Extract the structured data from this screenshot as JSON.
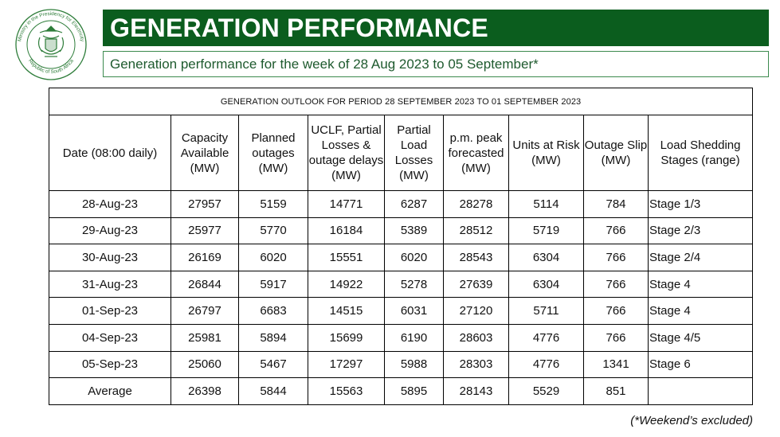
{
  "logo": {
    "ring_text_top": "Ministry in the Presidency for Electricity",
    "ring_text_bottom": "Republic of South Africa",
    "color": "#2e7d3a"
  },
  "header": {
    "title": "GENERATION PERFORMANCE",
    "subtitle": "Generation performance for the week of 28 Aug 2023 to 05 September*"
  },
  "table": {
    "caption": "GENERATION OUTLOOK FOR PERIOD 28 SEPTEMBER 2023 TO 01 SEPTEMBER 2023",
    "columns": [
      "Date (08:00 daily)",
      "Capacity Available (MW)",
      "Planned outages (MW)",
      "UCLF, Partial Losses & outage delays (MW)",
      "Partial Load Losses (MW)",
      "p.m. peak forecasted (MW)",
      "Units at Risk (MW)",
      "Outage Slip (MW)",
      "Load Shedding Stages (range)"
    ],
    "rows": [
      [
        "28-Aug-23",
        "27957",
        "5159",
        "14771",
        "6287",
        "28278",
        "5114",
        "784",
        "Stage 1/3"
      ],
      [
        "29-Aug-23",
        "25977",
        "5770",
        "16184",
        "5389",
        "28512",
        "5719",
        "766",
        "Stage 2/3"
      ],
      [
        "30-Aug-23",
        "26169",
        "6020",
        "15551",
        "6020",
        "28543",
        "6304",
        "766",
        "Stage 2/4"
      ],
      [
        "31-Aug-23",
        "26844",
        "5917",
        "14922",
        "5278",
        "27639",
        "6304",
        "766",
        "Stage 4"
      ],
      [
        "01-Sep-23",
        "26797",
        "6683",
        "14515",
        "6031",
        "27120",
        "5711",
        "766",
        "Stage 4"
      ],
      [
        "04-Sep-23",
        "25981",
        "5894",
        "15699",
        "6190",
        "28603",
        "4776",
        "766",
        "Stage 4/5"
      ],
      [
        "05-Sep-23",
        "25060",
        "5467",
        "17297",
        "5988",
        "28303",
        "4776",
        "1341",
        "Stage 6"
      ],
      [
        "Average",
        "26398",
        "5844",
        "15563",
        "5895",
        "28143",
        "5529",
        "851",
        ""
      ]
    ]
  },
  "footnote": "(*Weekend’s excluded)",
  "colors": {
    "title_bg": "#0b5d1e",
    "title_text": "#ffffff",
    "subtitle_text": "#1e5a2e",
    "subtitle_border": "#3c8a4e"
  }
}
